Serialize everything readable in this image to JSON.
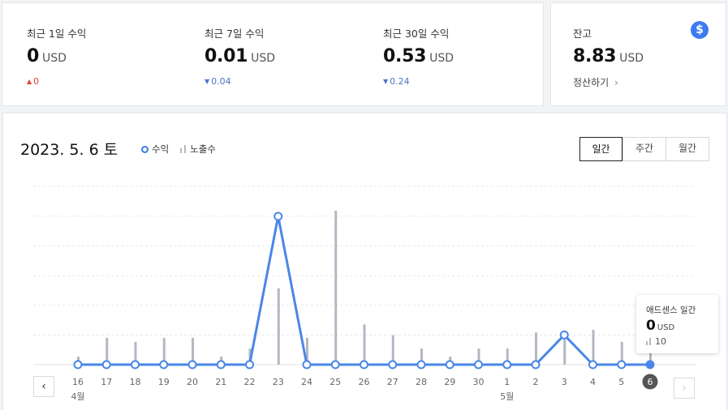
{
  "summary": {
    "stats": [
      {
        "label": "최근 1일 수익",
        "value": "0",
        "unit": "USD",
        "delta": "0",
        "direction": "up"
      },
      {
        "label": "최근 7일 수익",
        "value": "0.01",
        "unit": "USD",
        "delta": "0.04",
        "direction": "down"
      },
      {
        "label": "최근 30일 수익",
        "value": "0.53",
        "unit": "USD",
        "delta": "0.24",
        "direction": "down"
      }
    ]
  },
  "balance": {
    "label": "잔고",
    "value": "8.83",
    "unit": "USD",
    "settle_link": "정산하기",
    "icon": "dollar-icon"
  },
  "chart_header": {
    "date": "2023. 5. 6 토",
    "legend_revenue": "수익",
    "legend_impressions": "노출수",
    "tabs": [
      {
        "label": "일간",
        "active": true
      },
      {
        "label": "주간",
        "active": false
      },
      {
        "label": "월간",
        "active": false
      }
    ]
  },
  "tooltip": {
    "title": "애드센스 일간",
    "value": "0",
    "unit": "USD",
    "impressions": "10"
  },
  "colors": {
    "accent": "#3d7bf2",
    "line": "#4a86e8",
    "bar": "#b2b8c2",
    "down": "#4a74c9",
    "up": "#e0443e"
  },
  "chart_data": {
    "type": "line",
    "x": [
      "16",
      "17",
      "18",
      "19",
      "20",
      "21",
      "22",
      "23",
      "24",
      "25",
      "26",
      "27",
      "28",
      "29",
      "30",
      "1",
      "2",
      "3",
      "4",
      "5",
      "6"
    ],
    "month_labels": [
      {
        "index": 0,
        "label": "4월"
      },
      {
        "index": 15,
        "label": "5월"
      }
    ],
    "series": [
      {
        "name": "수익",
        "type": "line",
        "values": [
          0,
          0,
          0,
          0,
          0,
          0,
          0,
          0.5,
          0,
          0,
          0,
          0,
          0,
          0,
          0,
          0,
          0,
          0.1,
          0,
          0,
          0
        ]
      },
      {
        "name": "노출수",
        "type": "bar",
        "values": [
          6,
          20,
          17,
          20,
          20,
          6,
          12,
          57,
          20,
          115,
          30,
          22,
          12,
          6,
          12,
          12,
          24,
          24,
          26,
          17,
          10
        ]
      }
    ],
    "revenue_range": [
      0,
      0.55
    ],
    "impressions_range": [
      0,
      125
    ],
    "selected_index": 20,
    "grid": true
  }
}
